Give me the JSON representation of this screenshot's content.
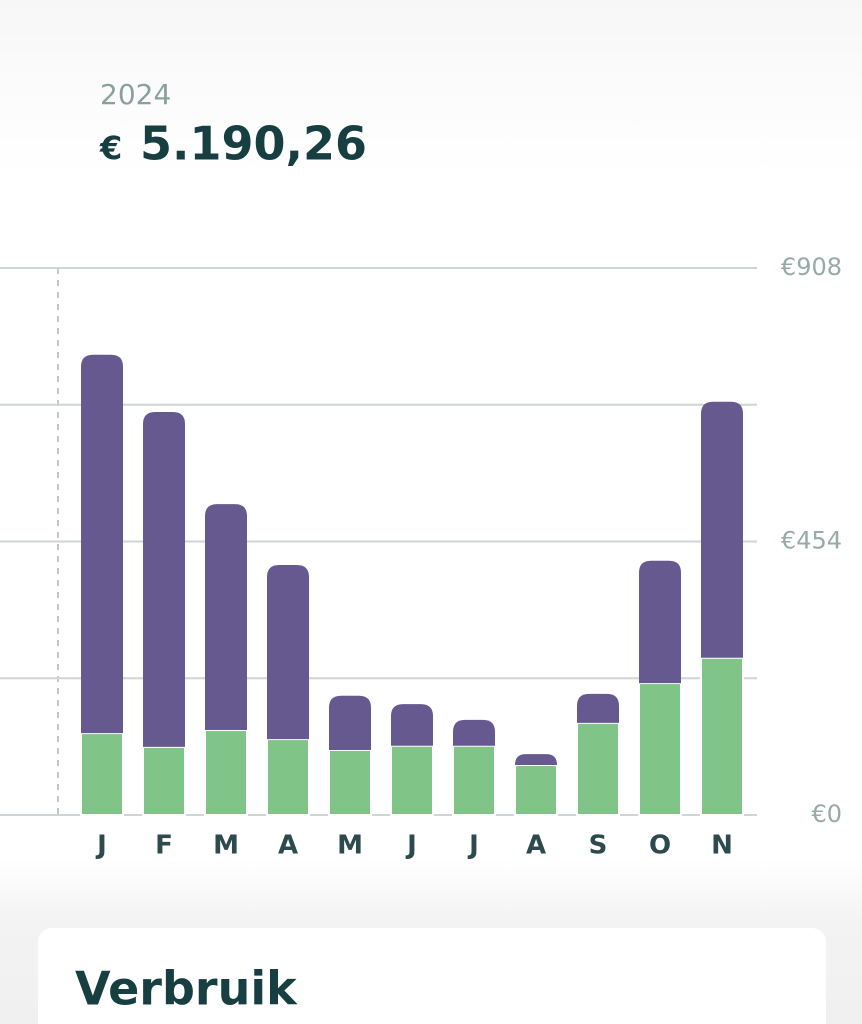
{
  "header": {
    "year": "2024",
    "currency": "€",
    "amount": "5.190,26"
  },
  "chart_data": {
    "type": "stacked-bar",
    "categories": [
      "J",
      "F",
      "M",
      "A",
      "M",
      "J",
      "J",
      "A",
      "S",
      "O",
      "N"
    ],
    "series": [
      {
        "color": "#80c487",
        "values": [
          136,
          113,
          141,
          126,
          108,
          115,
          115,
          83,
          153,
          219,
          261
        ]
      },
      {
        "color": "#665990",
        "values": [
          628,
          556,
          375,
          289,
          90,
          69,
          43,
          18,
          48,
          203,
          425
        ]
      }
    ],
    "ylim": [
      0,
      908
    ],
    "yticks": [
      {
        "value": 0,
        "label": "€0"
      },
      {
        "value": 227,
        "label": null
      },
      {
        "value": 454,
        "label": "€454"
      },
      {
        "value": 681,
        "label": null
      },
      {
        "value": 908,
        "label": "€908"
      }
    ],
    "grid": true
  },
  "card": {
    "title": "Verbruik"
  }
}
